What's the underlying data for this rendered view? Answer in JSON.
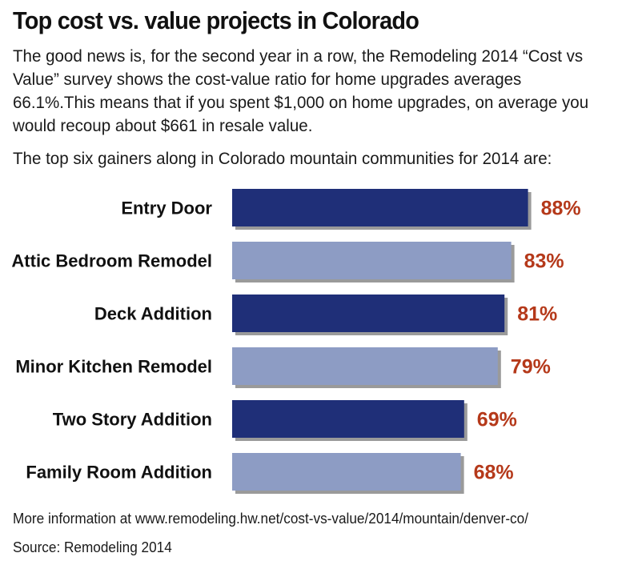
{
  "header": {
    "title": "Top cost vs. value projects in Colorado",
    "intro": "The good news is, for the second year in a row, the Remodeling 2014 “Cost vs Value” survey shows the cost-value ratio for home upgrades averages 66.1%.This means that if you spent $1,000 on home upgrades, on average you would recoup about $661 in resale value.",
    "lead": "The top six gainers along in Colorado mountain communities for 2014 are:"
  },
  "chart_data": {
    "type": "bar",
    "orientation": "horizontal",
    "categories": [
      "Entry Door",
      "Attic Bedroom Remodel",
      "Deck Addition",
      "Minor Kitchen Remodel",
      "Two Story Addition",
      "Family Room Addition"
    ],
    "values": [
      88,
      83,
      81,
      79,
      69,
      68
    ],
    "value_labels": [
      "88%",
      "83%",
      "81%",
      "79%",
      "69%",
      "68%"
    ],
    "bar_colors": [
      "#1f2f78",
      "#8d9cc4",
      "#1f2f78",
      "#8d9cc4",
      "#1f2f78",
      "#8d9cc4"
    ],
    "label_color": "#b5391a",
    "grid": false,
    "legend": "none"
  },
  "footer": {
    "more_info": "More information at www.remodeling.hw.net/cost-vs-value/2014/mountain/denver-co/",
    "source": "Source: Remodeling 2014"
  }
}
